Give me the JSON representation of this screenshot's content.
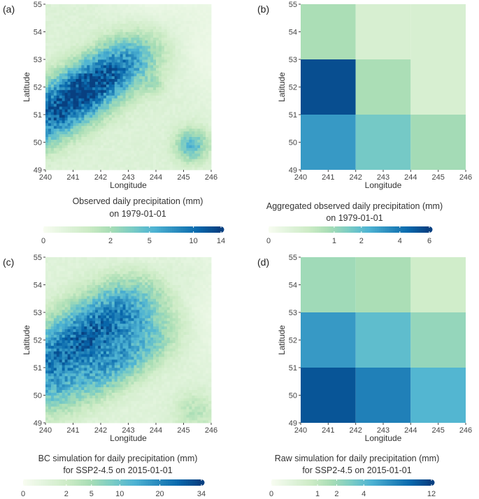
{
  "palette": [
    "#f7fcf0",
    "#e0f3db",
    "#ccebc5",
    "#a8ddb5",
    "#7bccc4",
    "#4eb3d3",
    "#2b8cbe",
    "#0868ac",
    "#084081"
  ],
  "chart_data": [
    {
      "id": "a",
      "panel_label": "(a)",
      "type": "heatmap",
      "title_line1": "Observed daily precipitation (mm)",
      "title_line2": "on 1979-01-01",
      "xlabel": "Longitude",
      "ylabel": "Latitude",
      "xlim": [
        240,
        246
      ],
      "ylim": [
        49,
        55
      ],
      "x_ticks": [
        240,
        241,
        242,
        243,
        244,
        245,
        246
      ],
      "y_ticks": [
        49,
        50,
        51,
        52,
        53,
        54,
        55
      ],
      "resolution": "fine",
      "seed": 11,
      "field": {
        "base": 0.3,
        "max": 14,
        "ridges": [
          {
            "lon": 241.0,
            "lat": 51.5,
            "amp": 11,
            "along": 1.9,
            "across": 0.55
          },
          {
            "lon": 241.8,
            "lat": 52.4,
            "amp": 4.5,
            "along": 1.6,
            "across": 0.5
          }
        ],
        "blobs": [
          {
            "lon": 245.3,
            "lat": 49.9,
            "amp": 4.5,
            "r": 0.35
          },
          {
            "lon": 243.9,
            "lat": 52.1,
            "amp": 1.2,
            "r": 0.25
          }
        ]
      },
      "colorbar": {
        "ticks": [
          0,
          2,
          5,
          10,
          14
        ],
        "max": 14
      }
    },
    {
      "id": "b",
      "panel_label": "(b)",
      "type": "heatmap",
      "title_line1": "Aggregated observed daily precipitation (mm)",
      "title_line2": "on 1979-01-01",
      "xlabel": "Longitude",
      "ylabel": "Latitude",
      "xlim": [
        240,
        246
      ],
      "ylim": [
        49,
        55
      ],
      "x_ticks": [
        240,
        241,
        242,
        243,
        244,
        245,
        246
      ],
      "y_ticks": [
        49,
        50,
        51,
        52,
        53,
        54,
        55
      ],
      "resolution": "coarse",
      "lon_edges": [
        240,
        242,
        244,
        246
      ],
      "lat_edges": [
        49,
        51,
        53,
        55
      ],
      "cells": [
        [
          3.0,
          1.6,
          0.9
        ],
        [
          5.5,
          0.8,
          0.2
        ],
        [
          0.8,
          0.2,
          0.2
        ]
      ],
      "colorbar": {
        "ticks": [
          0,
          1,
          2,
          4,
          6
        ],
        "max": 6
      }
    },
    {
      "id": "c",
      "panel_label": "(c)",
      "type": "heatmap",
      "title_line1": "BC simulation for daily precipitation (mm)",
      "title_line2": "for SSP2-4.5 on 2015-01-01",
      "xlabel": "Longitude",
      "ylabel": "Latitude",
      "xlim": [
        240,
        246
      ],
      "ylim": [
        49,
        55
      ],
      "x_ticks": [
        240,
        241,
        242,
        243,
        244,
        245,
        246
      ],
      "y_ticks": [
        49,
        50,
        51,
        52,
        53,
        54,
        55
      ],
      "resolution": "fine",
      "seed": 29,
      "field": {
        "base": 0.6,
        "max": 34,
        "ridges": [
          {
            "lon": 241.3,
            "lat": 51.9,
            "amp": 22,
            "along": 2.3,
            "across": 0.7
          },
          {
            "lon": 242.6,
            "lat": 51.2,
            "amp": 12,
            "along": 1.4,
            "across": 0.5
          },
          {
            "lon": 242.0,
            "lat": 52.9,
            "amp": 5,
            "along": 2.0,
            "across": 0.6
          }
        ],
        "blobs": [
          {
            "lon": 245.4,
            "lat": 49.4,
            "amp": 3,
            "r": 0.45
          },
          {
            "lon": 240.4,
            "lat": 50.2,
            "amp": 4,
            "r": 0.5
          }
        ]
      },
      "colorbar": {
        "ticks": [
          0,
          2,
          5,
          10,
          20,
          34
        ],
        "max": 34
      }
    },
    {
      "id": "d",
      "panel_label": "(d)",
      "type": "heatmap",
      "title_line1": "Raw simulation for daily precipitation (mm)",
      "title_line2": "for SSP2-4.5 on 2015-01-01",
      "xlabel": "Longitude",
      "ylabel": "Latitude",
      "xlim": [
        240,
        246
      ],
      "ylim": [
        49,
        55
      ],
      "x_ticks": [
        240,
        241,
        242,
        243,
        244,
        245,
        246
      ],
      "y_ticks": [
        49,
        50,
        51,
        52,
        53,
        54,
        55
      ],
      "resolution": "coarse",
      "lon_edges": [
        240,
        242,
        244,
        246
      ],
      "lat_edges": [
        49,
        51,
        53,
        55
      ],
      "cells": [
        [
          10.5,
          7.5,
          4.5
        ],
        [
          6.0,
          4.0,
          2.2
        ],
        [
          1.9,
          1.6,
          0.6
        ]
      ],
      "colorbar": {
        "ticks": [
          0,
          1,
          2,
          4,
          12
        ],
        "max": 12
      }
    }
  ]
}
